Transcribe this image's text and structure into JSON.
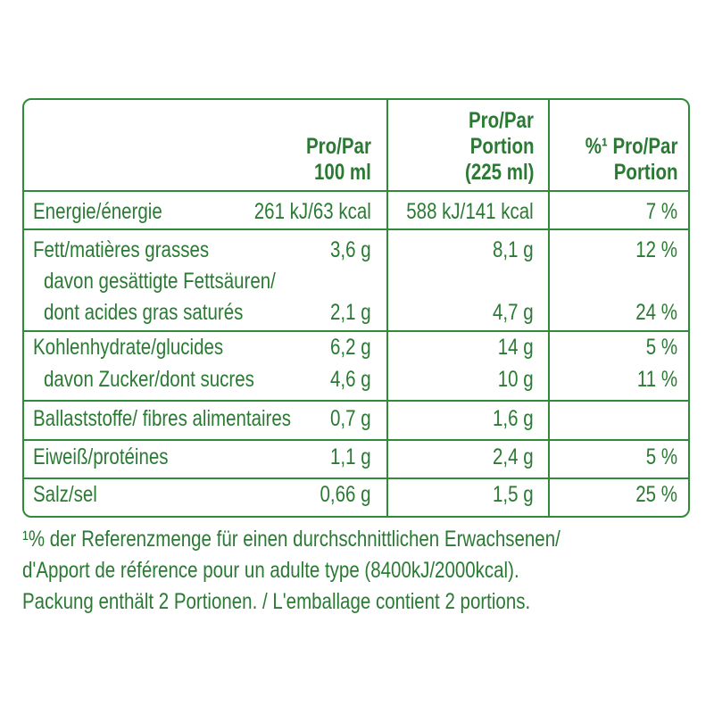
{
  "header": {
    "col1": [
      "Pro/Par",
      "100 ml"
    ],
    "col2": [
      "Pro/Par",
      "Portion",
      "(225 ml)"
    ],
    "col3": [
      "%¹ Pro/Par",
      "Portion"
    ]
  },
  "rows": {
    "energy": {
      "label": "Energie/énergie",
      "per100": "261 kJ/63 kcal",
      "portion": "588 kJ/141 kcal",
      "pct": "7 %"
    },
    "fat": {
      "label": "Fett/matières grasses",
      "per100": "3,6 g",
      "portion": "8,1 g",
      "pct": "12 %"
    },
    "satfat": {
      "label1": "davon gesättigte Fettsäuren/",
      "label2": "dont acides gras saturés",
      "per100": "2,1 g",
      "portion": "4,7 g",
      "pct": "24 %"
    },
    "carbs": {
      "label": "Kohlenhydrate/glucides",
      "per100": "6,2 g",
      "portion": "14 g",
      "pct": "5 %"
    },
    "sugar": {
      "label": "davon Zucker/dont sucres",
      "per100": "4,6 g",
      "portion": "10 g",
      "pct": "11 %"
    },
    "fibre": {
      "label": "Ballaststoffe/ fibres alimentaires",
      "per100": "0,7 g",
      "portion": "1,6 g"
    },
    "protein": {
      "label": "Eiweiß/protéines",
      "per100": "1,1 g",
      "portion": "2,4 g",
      "pct": "5 %"
    },
    "salt": {
      "label": "Salz/sel",
      "per100": "0,66 g",
      "portion": "1,5 g",
      "pct": "25 %"
    }
  },
  "footnote": {
    "line1": "¹% der Referenzmenge für einen durchschnittlichen Erwachsenen/",
    "line2": "d'Apport de référence pour un adulte type (8400kJ/2000kcal).",
    "line3": "Packung enthält 2 Portionen. / L'emballage contient 2 portions."
  }
}
